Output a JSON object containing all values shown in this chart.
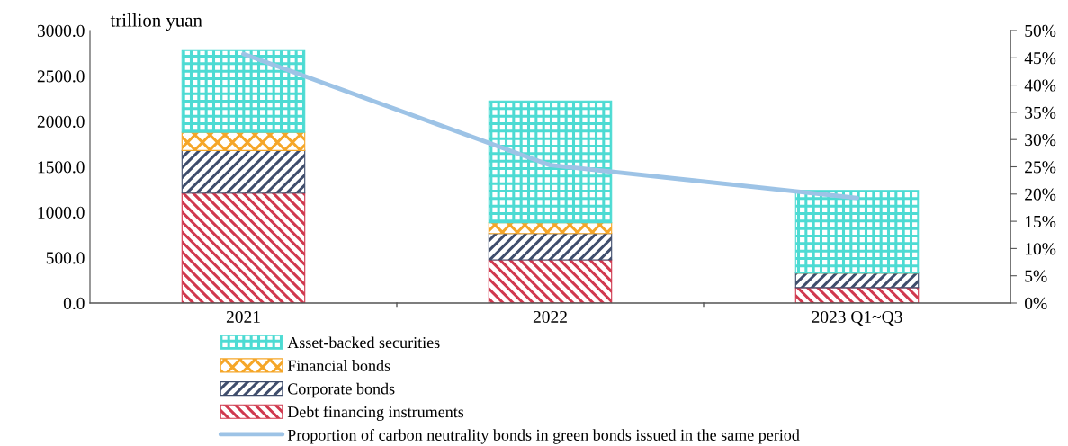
{
  "chart_data": {
    "type": "bar",
    "stacked": true,
    "ylabel": "trillion yuan",
    "categories": [
      "2021",
      "2022",
      "2023 Q1~Q3"
    ],
    "series": [
      {
        "name": "Debt financing instruments",
        "color": "#d0384e",
        "values": [
          1210,
          475,
          170
        ]
      },
      {
        "name": "Corporate bonds",
        "color": "#3f4d6c",
        "values": [
          470,
          290,
          160
        ]
      },
      {
        "name": "Financial bonds",
        "color": "#f5a628",
        "values": [
          200,
          120,
          0
        ]
      },
      {
        "name": "Asset-backed securities",
        "color": "#4ddbd3",
        "values": [
          900,
          1340,
          910
        ]
      },
      {
        "name": "Proportion of carbon neutrality bonds in green bonds issued in the same period",
        "type": "line",
        "axis": "y2",
        "color": "#9dc3e6",
        "values": [
          45.7,
          25.3,
          19.3
        ]
      }
    ],
    "ylim": [
      0,
      3000
    ],
    "yticks": [
      {
        "value": 0,
        "label": "0.0"
      },
      {
        "value": 500,
        "label": "500.0"
      },
      {
        "value": 1000,
        "label": "1000.0"
      },
      {
        "value": 1500,
        "label": "1500.0"
      },
      {
        "value": 2000,
        "label": "2000.0"
      },
      {
        "value": 2500,
        "label": "2500.0"
      },
      {
        "value": 3000,
        "label": "3000.0"
      }
    ],
    "y2lim": [
      0,
      50
    ],
    "y2ticks": [
      {
        "value": 0,
        "label": "0%"
      },
      {
        "value": 5,
        "label": "5%"
      },
      {
        "value": 10,
        "label": "10%"
      },
      {
        "value": 15,
        "label": "15%"
      },
      {
        "value": 20,
        "label": "20%"
      },
      {
        "value": 25,
        "label": "25%"
      },
      {
        "value": 30,
        "label": "30%"
      },
      {
        "value": 35,
        "label": "35%"
      },
      {
        "value": 40,
        "label": "40%"
      },
      {
        "value": 45,
        "label": "45%"
      },
      {
        "value": 50,
        "label": "50%"
      }
    ],
    "grid": false,
    "legend": "bottom",
    "marker": "none",
    "line_style": "solid"
  }
}
